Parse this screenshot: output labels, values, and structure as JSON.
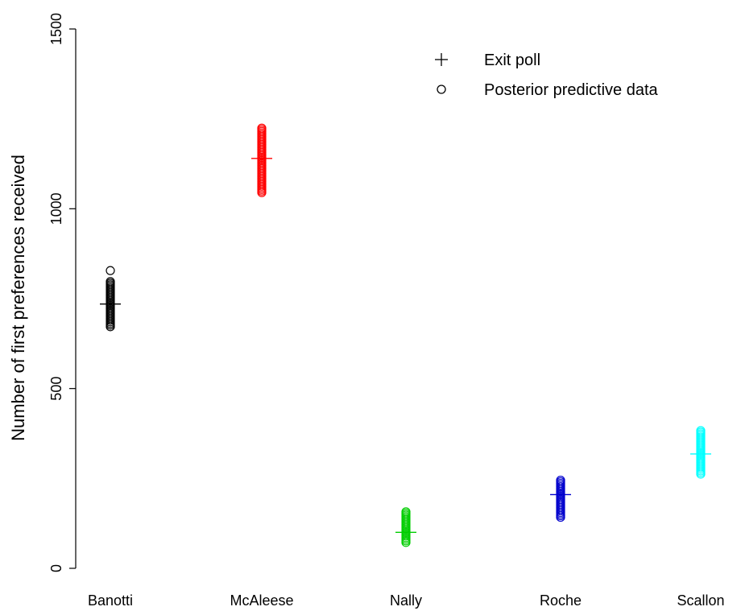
{
  "chart_data": {
    "type": "scatter",
    "ylabel": "Number of first preferences received",
    "xlabel": "",
    "ylim": [
      0,
      1500
    ],
    "yticks": [
      "0",
      "500",
      "1000",
      "1500"
    ],
    "grid": false,
    "legend_position": "top-right",
    "legend": [
      {
        "label": "Exit poll",
        "marker": "plus"
      },
      {
        "label": "Posterior predictive data",
        "marker": "circle"
      }
    ],
    "categories": [
      "Banotti",
      "McAleese",
      "Nally",
      "Roche",
      "Scallon"
    ],
    "series": [
      {
        "category": "Banotti",
        "color": "#000000",
        "exit_poll": 735,
        "posterior_min": 672,
        "posterior_max": 800,
        "posterior_outliers": [
          828
        ]
      },
      {
        "category": "McAleese",
        "color": "#ff0000",
        "exit_poll": 1140,
        "posterior_min": 1045,
        "posterior_max": 1228,
        "posterior_outliers": []
      },
      {
        "category": "Nally",
        "color": "#00cd00",
        "exit_poll": 100,
        "posterior_min": 72,
        "posterior_max": 160,
        "posterior_outliers": []
      },
      {
        "category": "Roche",
        "color": "#0000cd",
        "exit_poll": 205,
        "posterior_min": 142,
        "posterior_max": 245,
        "posterior_outliers": []
      },
      {
        "category": "Scallon",
        "color": "#00ffff",
        "exit_poll": 318,
        "posterior_min": 262,
        "posterior_max": 385,
        "posterior_outliers": []
      }
    ]
  }
}
